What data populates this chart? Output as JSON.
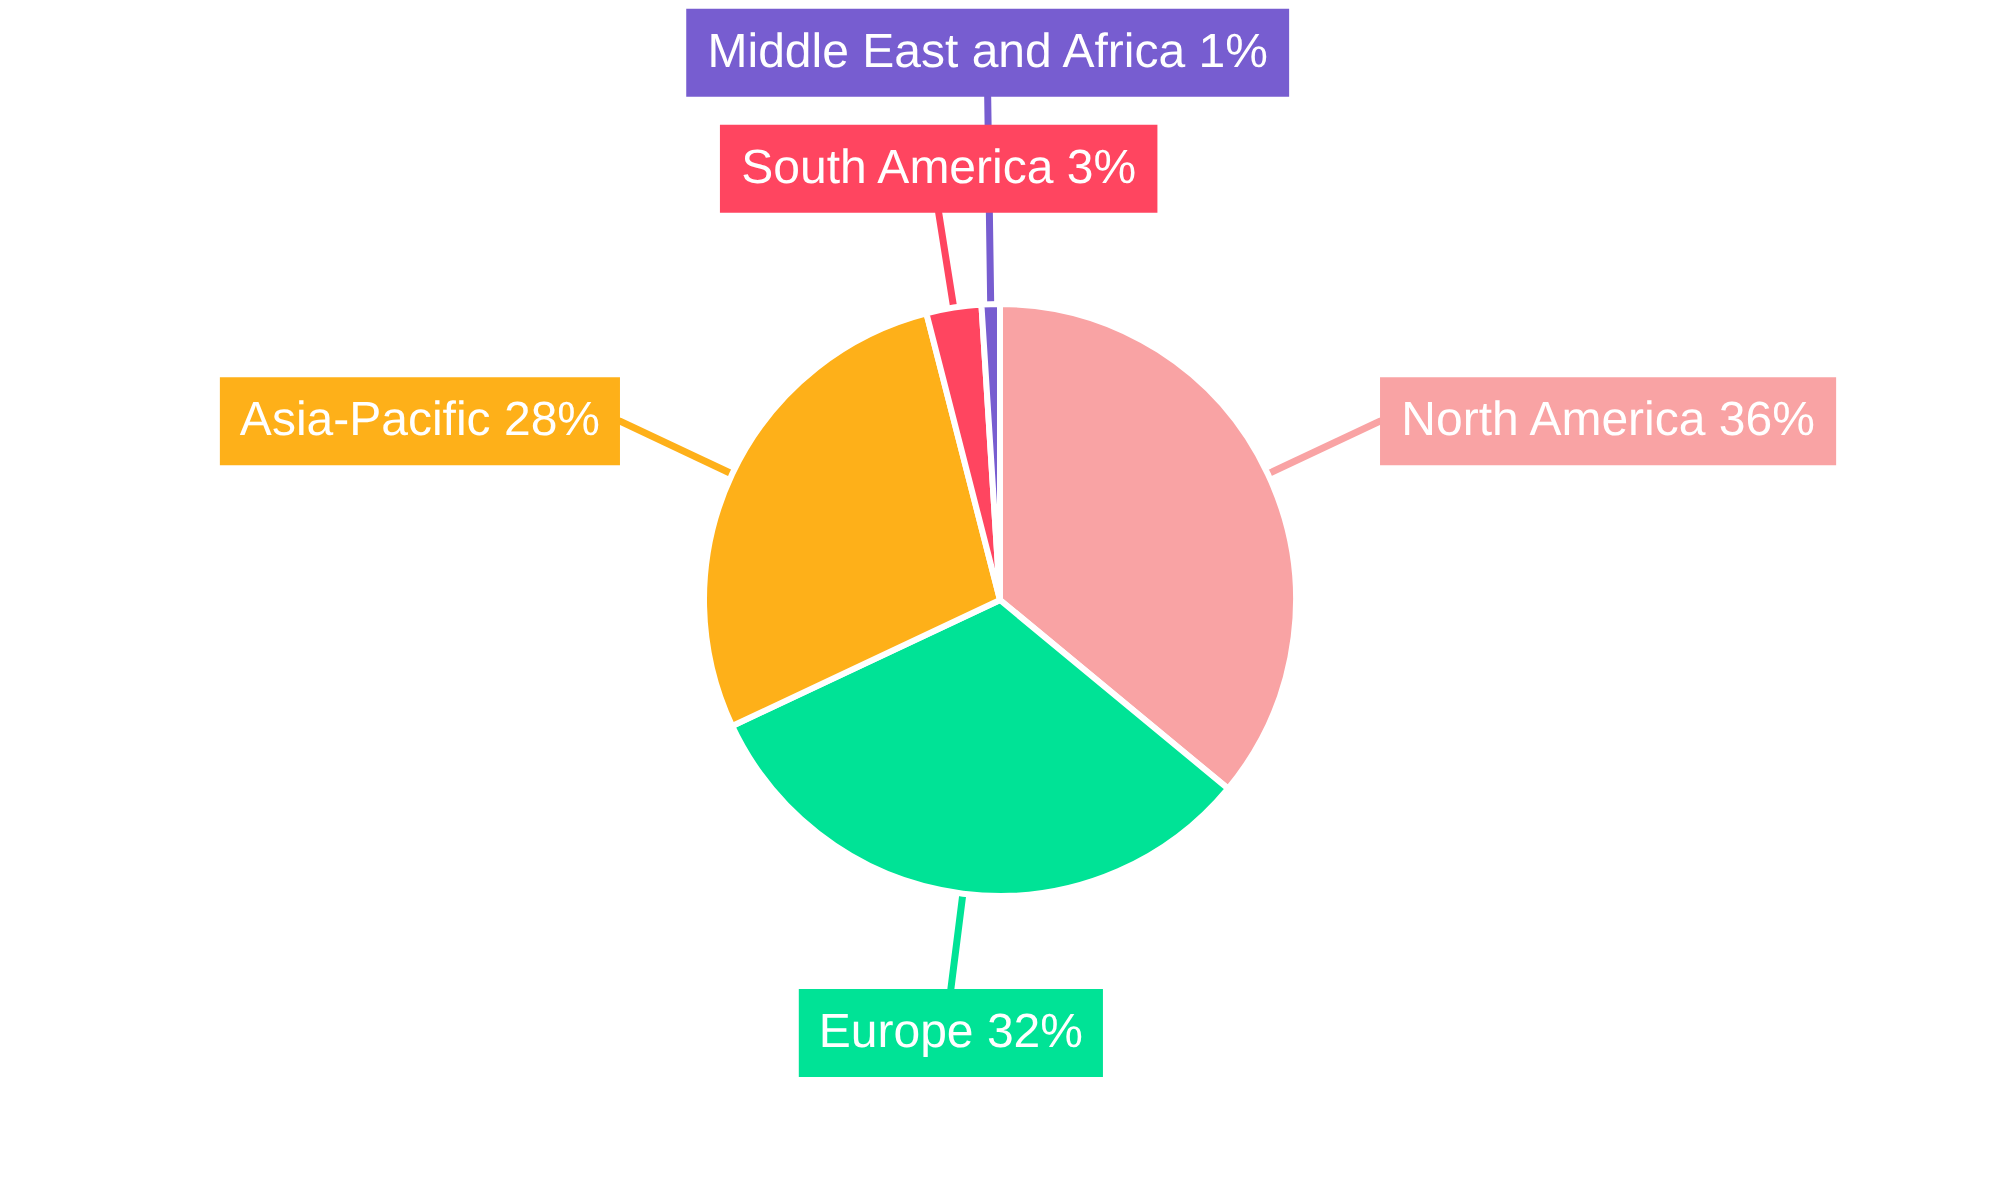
{
  "chart_data": {
    "type": "pie",
    "categories": [
      "North America",
      "Europe",
      "Asia-Pacific",
      "South America",
      "Middle East and Africa"
    ],
    "values": [
      36,
      32,
      28,
      3,
      1
    ],
    "value_labels": [
      "36%",
      "32%",
      "28%",
      "3%",
      "1%"
    ],
    "colors": [
      "#f9a3a4",
      "#00e396",
      "#feb019",
      "#ff4560",
      "#775dd0"
    ]
  }
}
